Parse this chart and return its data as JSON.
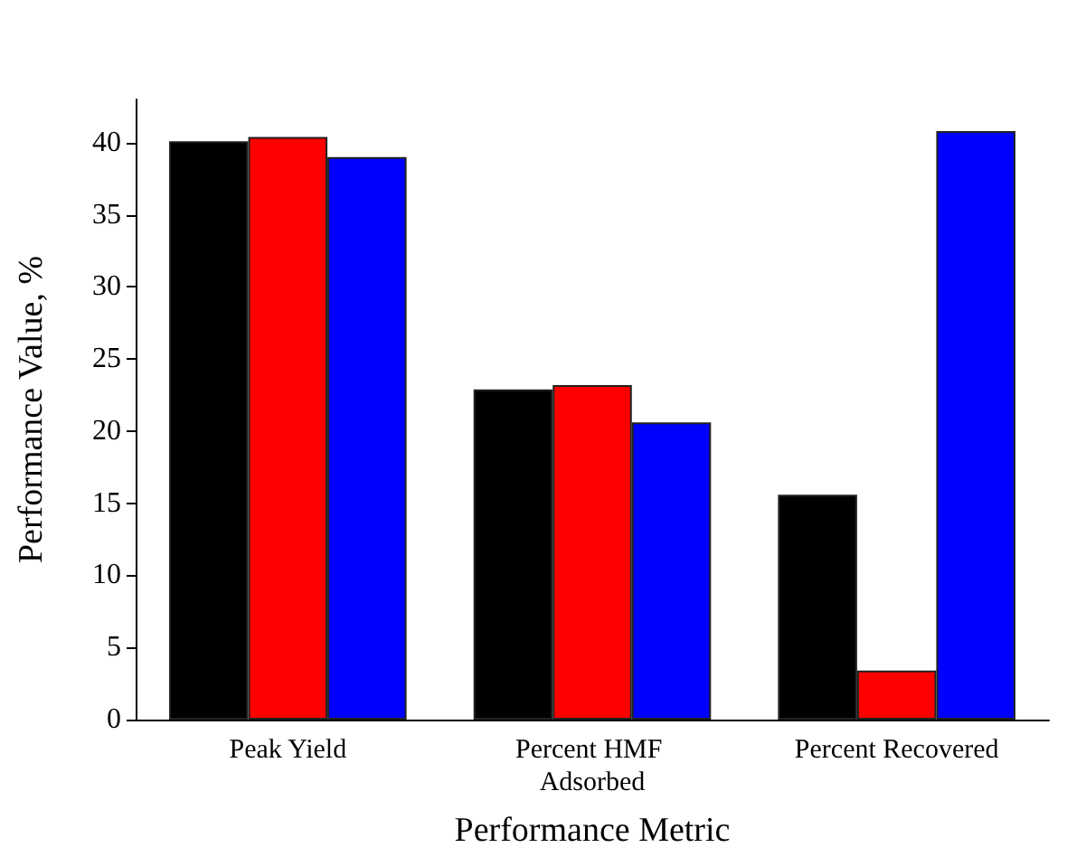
{
  "chart_data": {
    "type": "bar",
    "xlabel": "Performance Metric",
    "ylabel": "Performance Value, %",
    "categories": [
      "Peak Yield",
      "Percent HMF Adsorbed",
      "Percent Recovered"
    ],
    "series": [
      {
        "color": "#000000",
        "values": [
          40.1,
          22.9,
          15.6
        ]
      },
      {
        "color": "#ff0000",
        "values": [
          40.4,
          23.2,
          3.4
        ]
      },
      {
        "color": "#0000ff",
        "values": [
          39.0,
          20.6,
          40.8
        ]
      }
    ],
    "ylim": [
      0,
      43
    ],
    "yticks": [
      0,
      5,
      10,
      15,
      20,
      25,
      30,
      35,
      40
    ],
    "grid": false
  }
}
